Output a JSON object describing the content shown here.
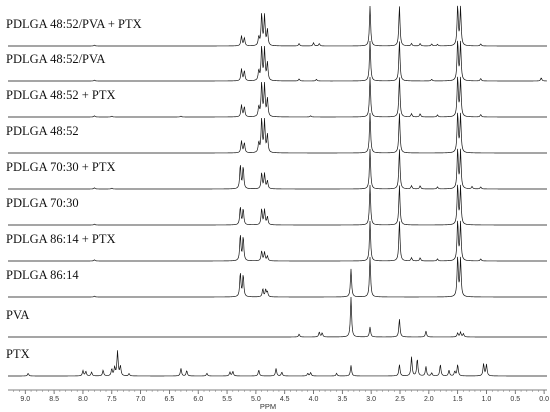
{
  "chart_data": {
    "type": "line",
    "title": "",
    "xlabel": "PPM",
    "ylabel": "",
    "xlim": [
      9.3,
      -0.05
    ],
    "x_reversed": true,
    "x_ticks": [
      "9.0",
      "8.5",
      "8.0",
      "7.5",
      "7.0",
      "6.5",
      "6.0",
      "5.5",
      "5.0",
      "4.5",
      "4.0",
      "3.5",
      "3.0",
      "2.5",
      "2.0",
      "1.5",
      "1.0",
      "0.5",
      "0.0"
    ],
    "x_tick_values": [
      9.0,
      8.5,
      8.0,
      7.5,
      7.0,
      6.5,
      6.0,
      5.5,
      5.0,
      4.5,
      4.0,
      3.5,
      3.0,
      2.5,
      2.0,
      1.5,
      1.0,
      0.5,
      0.0
    ],
    "grid": false,
    "line_color": "#111111",
    "series": [
      {
        "name": "PDLGA 48:52/PVA + PTX",
        "peaks": [
          [
            7.8,
            0.02
          ],
          [
            5.25,
            0.25
          ],
          [
            5.2,
            0.2
          ],
          [
            4.95,
            0.22
          ],
          [
            4.9,
            0.8
          ],
          [
            4.85,
            0.75
          ],
          [
            4.8,
            0.4
          ],
          [
            4.25,
            0.06
          ],
          [
            4.0,
            0.08
          ],
          [
            3.9,
            0.06
          ],
          [
            3.02,
            1.0
          ],
          [
            2.51,
            1.0
          ],
          [
            2.3,
            0.06
          ],
          [
            2.15,
            0.06
          ],
          [
            1.95,
            0.05
          ],
          [
            1.85,
            0.04
          ],
          [
            1.5,
            1.0
          ],
          [
            1.45,
            0.95
          ],
          [
            1.1,
            0.05
          ]
        ]
      },
      {
        "name": "PDLGA 48:52/PVA",
        "peaks": [
          [
            7.8,
            0.02
          ],
          [
            5.25,
            0.3
          ],
          [
            5.2,
            0.25
          ],
          [
            4.95,
            0.25
          ],
          [
            4.9,
            0.85
          ],
          [
            4.85,
            0.8
          ],
          [
            4.8,
            0.45
          ],
          [
            4.25,
            0.05
          ],
          [
            3.95,
            0.04
          ],
          [
            3.02,
            1.0
          ],
          [
            2.51,
            1.0
          ],
          [
            1.95,
            0.04
          ],
          [
            1.5,
            1.0
          ],
          [
            1.45,
            0.95
          ],
          [
            1.1,
            0.06
          ],
          [
            0.05,
            0.08
          ]
        ]
      },
      {
        "name": "PDLGA 48:52 + PTX",
        "peaks": [
          [
            7.8,
            0.03
          ],
          [
            7.5,
            0.02
          ],
          [
            6.3,
            0.02
          ],
          [
            5.25,
            0.3
          ],
          [
            5.2,
            0.25
          ],
          [
            4.95,
            0.25
          ],
          [
            4.9,
            0.85
          ],
          [
            4.85,
            0.8
          ],
          [
            4.8,
            0.45
          ],
          [
            4.05,
            0.03
          ],
          [
            3.02,
            1.0
          ],
          [
            2.51,
            1.0
          ],
          [
            2.3,
            0.08
          ],
          [
            2.15,
            0.08
          ],
          [
            1.85,
            0.05
          ],
          [
            1.5,
            1.0
          ],
          [
            1.45,
            0.95
          ],
          [
            1.1,
            0.06
          ]
        ]
      },
      {
        "name": "PDLGA 48:52",
        "peaks": [
          [
            5.25,
            0.3
          ],
          [
            5.2,
            0.25
          ],
          [
            4.95,
            0.25
          ],
          [
            4.9,
            0.85
          ],
          [
            4.85,
            0.8
          ],
          [
            4.8,
            0.45
          ],
          [
            3.02,
            1.0
          ],
          [
            2.51,
            1.0
          ],
          [
            1.5,
            1.0
          ],
          [
            1.45,
            0.95
          ]
        ]
      },
      {
        "name": "PDLGA 70:30 + PTX",
        "peaks": [
          [
            7.8,
            0.03
          ],
          [
            7.5,
            0.02
          ],
          [
            5.27,
            0.6
          ],
          [
            5.22,
            0.55
          ],
          [
            4.9,
            0.4
          ],
          [
            4.85,
            0.38
          ],
          [
            4.8,
            0.2
          ],
          [
            3.02,
            1.0
          ],
          [
            2.51,
            1.0
          ],
          [
            2.3,
            0.08
          ],
          [
            2.15,
            0.08
          ],
          [
            1.85,
            0.05
          ],
          [
            1.5,
            1.0
          ],
          [
            1.45,
            0.95
          ],
          [
            1.25,
            0.06
          ],
          [
            1.1,
            0.05
          ]
        ]
      },
      {
        "name": "PDLGA 70:30",
        "peaks": [
          [
            7.8,
            0.02
          ],
          [
            5.27,
            0.45
          ],
          [
            5.22,
            0.4
          ],
          [
            4.9,
            0.4
          ],
          [
            4.85,
            0.38
          ],
          [
            4.8,
            0.2
          ],
          [
            3.02,
            1.0
          ],
          [
            2.51,
            1.0
          ],
          [
            1.5,
            1.0
          ],
          [
            1.45,
            0.95
          ]
        ]
      },
      {
        "name": "PDLGA 86:14 + PTX",
        "peaks": [
          [
            7.8,
            0.03
          ],
          [
            5.27,
            0.65
          ],
          [
            5.22,
            0.6
          ],
          [
            4.9,
            0.25
          ],
          [
            4.85,
            0.22
          ],
          [
            4.8,
            0.12
          ],
          [
            3.02,
            1.0
          ],
          [
            2.51,
            1.0
          ],
          [
            2.3,
            0.08
          ],
          [
            2.15,
            0.08
          ],
          [
            1.85,
            0.05
          ],
          [
            1.5,
            1.0
          ],
          [
            1.45,
            0.95
          ],
          [
            1.1,
            0.05
          ]
        ]
      },
      {
        "name": "PDLGA 86:14",
        "peaks": [
          [
            7.8,
            0.02
          ],
          [
            5.27,
            0.6
          ],
          [
            5.22,
            0.55
          ],
          [
            4.88,
            0.2
          ],
          [
            4.83,
            0.18
          ],
          [
            4.8,
            0.12
          ],
          [
            3.35,
            0.7
          ],
          [
            3.02,
            1.0
          ],
          [
            1.5,
            1.0
          ],
          [
            1.45,
            0.95
          ]
        ]
      },
      {
        "name": "PVA",
        "peaks": [
          [
            4.25,
            0.07
          ],
          [
            3.9,
            0.12
          ],
          [
            3.85,
            0.1
          ],
          [
            3.35,
            1.0
          ],
          [
            3.02,
            0.25
          ],
          [
            2.51,
            0.45
          ],
          [
            2.05,
            0.15
          ],
          [
            1.5,
            0.1
          ],
          [
            1.45,
            0.12
          ],
          [
            1.4,
            0.08
          ]
        ]
      },
      {
        "name": "PTX",
        "peaks": [
          [
            8.95,
            0.07
          ],
          [
            8.0,
            0.14
          ],
          [
            7.95,
            0.12
          ],
          [
            7.85,
            0.1
          ],
          [
            7.65,
            0.15
          ],
          [
            7.5,
            0.18
          ],
          [
            7.45,
            0.22
          ],
          [
            7.4,
            0.65
          ],
          [
            7.35,
            0.25
          ],
          [
            7.2,
            0.06
          ],
          [
            6.3,
            0.2
          ],
          [
            6.2,
            0.14
          ],
          [
            5.85,
            0.07
          ],
          [
            5.45,
            0.1
          ],
          [
            5.4,
            0.12
          ],
          [
            4.95,
            0.16
          ],
          [
            4.65,
            0.2
          ],
          [
            4.55,
            0.1
          ],
          [
            4.1,
            0.07
          ],
          [
            4.05,
            0.09
          ],
          [
            3.6,
            0.07
          ],
          [
            3.35,
            0.28
          ],
          [
            2.51,
            0.3
          ],
          [
            2.3,
            0.5
          ],
          [
            2.2,
            0.45
          ],
          [
            2.05,
            0.25
          ],
          [
            1.95,
            0.08
          ],
          [
            1.8,
            0.3
          ],
          [
            1.65,
            0.15
          ],
          [
            1.55,
            0.12
          ],
          [
            1.5,
            0.3
          ],
          [
            1.05,
            0.32
          ],
          [
            1.0,
            0.3
          ]
        ]
      }
    ]
  }
}
